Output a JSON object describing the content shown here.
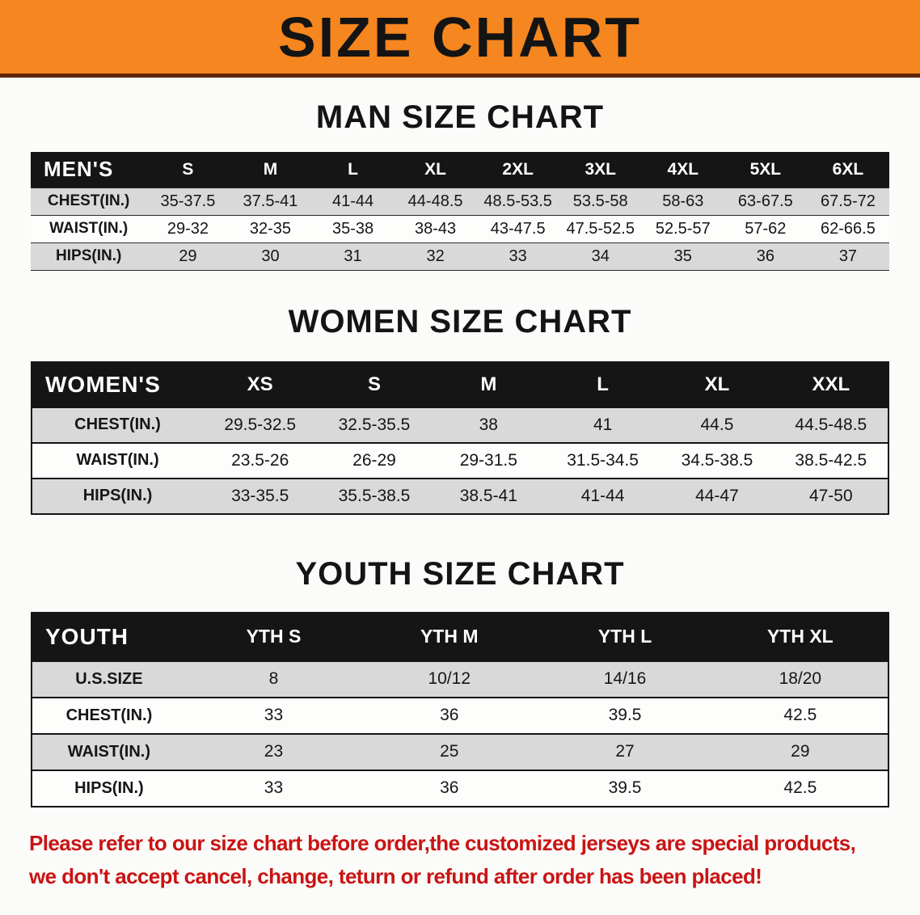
{
  "banner": {
    "title": "SIZE CHART"
  },
  "men": {
    "heading": "MAN SIZE CHART",
    "corner": "MEN'S",
    "sizes": [
      "S",
      "M",
      "L",
      "XL",
      "2XL",
      "3XL",
      "4XL",
      "5XL",
      "6XL"
    ],
    "rows": [
      {
        "label": "CHEST(IN.)",
        "values": [
          "35-37.5",
          "37.5-41",
          "41-44",
          "44-48.5",
          "48.5-53.5",
          "53.5-58",
          "58-63",
          "63-67.5",
          "67.5-72"
        ]
      },
      {
        "label": "WAIST(IN.)",
        "values": [
          "29-32",
          "32-35",
          "35-38",
          "38-43",
          "43-47.5",
          "47.5-52.5",
          "52.5-57",
          "57-62",
          "62-66.5"
        ]
      },
      {
        "label": "HIPS(IN.)",
        "values": [
          "29",
          "30",
          "31",
          "32",
          "33",
          "34",
          "35",
          "36",
          "37"
        ]
      }
    ]
  },
  "women": {
    "heading": "WOMEN SIZE CHART",
    "corner": "WOMEN'S",
    "sizes": [
      "XS",
      "S",
      "M",
      "L",
      "XL",
      "XXL"
    ],
    "rows": [
      {
        "label": "CHEST(IN.)",
        "values": [
          "29.5-32.5",
          "32.5-35.5",
          "38",
          "41",
          "44.5",
          "44.5-48.5"
        ]
      },
      {
        "label": "WAIST(IN.)",
        "values": [
          "23.5-26",
          "26-29",
          "29-31.5",
          "31.5-34.5",
          "34.5-38.5",
          "38.5-42.5"
        ]
      },
      {
        "label": "HIPS(IN.)",
        "values": [
          "33-35.5",
          "35.5-38.5",
          "38.5-41",
          "41-44",
          "44-47",
          "47-50"
        ]
      }
    ]
  },
  "youth": {
    "heading": "YOUTH SIZE CHART",
    "corner": "YOUTH",
    "sizes": [
      "YTH S",
      "YTH M",
      "YTH L",
      "YTH XL"
    ],
    "rows": [
      {
        "label": "U.S.SIZE",
        "values": [
          "8",
          "10/12",
          "14/16",
          "18/20"
        ]
      },
      {
        "label": "CHEST(IN.)",
        "values": [
          "33",
          "36",
          "39.5",
          "42.5"
        ]
      },
      {
        "label": "WAIST(IN.)",
        "values": [
          "23",
          "25",
          "27",
          "29"
        ]
      },
      {
        "label": "HIPS(IN.)",
        "values": [
          "33",
          "36",
          "39.5",
          "42.5"
        ]
      }
    ]
  },
  "footer": {
    "line1": "Please refer to our size chart before order,the customized jerseys are special products,",
    "line2": "we don't accept cancel, change, teturn or refund after order has been placed!"
  },
  "colors": {
    "banner": "#f6861f",
    "table_head": "#151515",
    "row_gray": "#d9d9d9",
    "footer_red": "#c91414"
  }
}
